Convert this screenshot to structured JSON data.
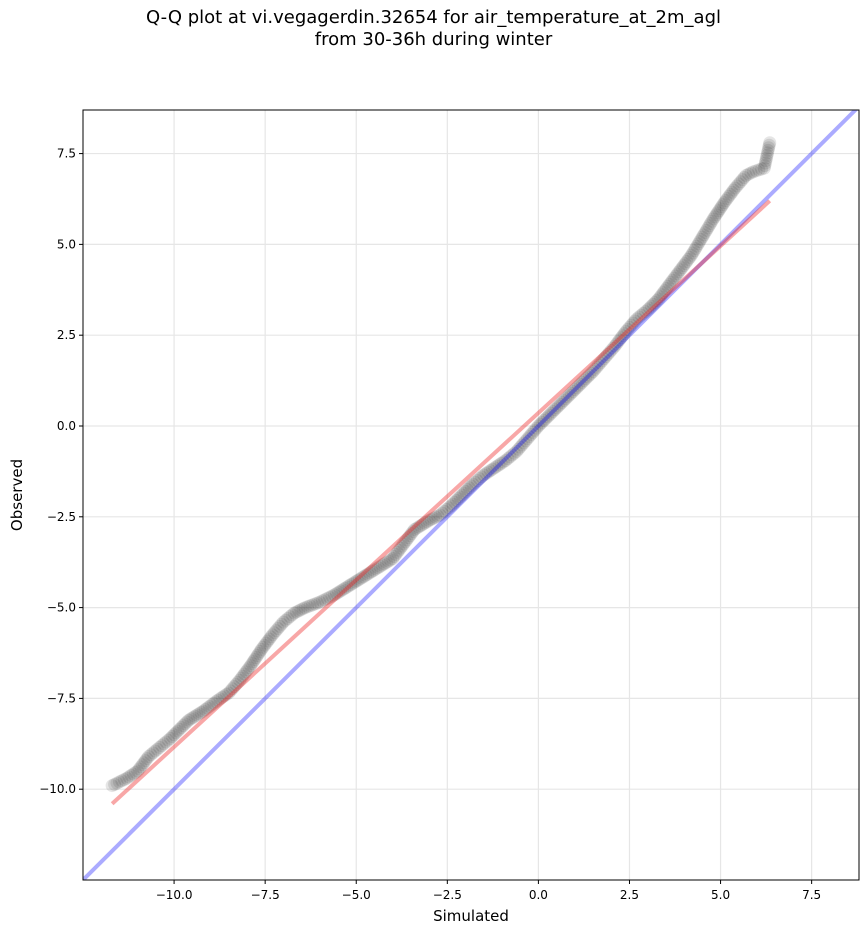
{
  "title": {
    "line1": "Q-Q plot at vi.vegagerdin.32654 for air_temperature_at_2m_agl",
    "line2": "from 30-36h during winter"
  },
  "colors": {
    "points": "#000000",
    "identity_line": "#0000ff",
    "fit_line": "#ee2222",
    "grid": "#e6e6e6"
  },
  "chart_data": {
    "type": "scatter",
    "xlabel": "Simulated",
    "ylabel": "Observed",
    "xlim": [
      -12.5,
      8.8
    ],
    "ylim": [
      -12.5,
      8.7
    ],
    "xticks": [
      -10.0,
      -7.5,
      -5.0,
      -2.5,
      0.0,
      2.5,
      5.0,
      7.5
    ],
    "xtick_labels": [
      "−10.0",
      "−7.5",
      "−5.0",
      "−2.5",
      "0.0",
      "2.5",
      "5.0",
      "7.5"
    ],
    "yticks": [
      -10.0,
      -7.5,
      -5.0,
      -2.5,
      0.0,
      2.5,
      5.0,
      7.5
    ],
    "ytick_labels": [
      "−10.0",
      "−7.5",
      "−5.0",
      "−2.5",
      "0.0",
      "2.5",
      "5.0",
      "7.5"
    ],
    "grid": true,
    "quantile_curve": [
      [
        -11.7,
        -9.9
      ],
      [
        -11.3,
        -9.7
      ],
      [
        -11.0,
        -9.5
      ],
      [
        -10.7,
        -9.1
      ],
      [
        -10.4,
        -8.85
      ],
      [
        -10.1,
        -8.6
      ],
      [
        -9.6,
        -8.1
      ],
      [
        -9.2,
        -7.85
      ],
      [
        -8.8,
        -7.55
      ],
      [
        -8.5,
        -7.35
      ],
      [
        -8.2,
        -7.0
      ],
      [
        -7.9,
        -6.6
      ],
      [
        -7.6,
        -6.15
      ],
      [
        -7.3,
        -5.75
      ],
      [
        -7.0,
        -5.4
      ],
      [
        -6.7,
        -5.15
      ],
      [
        -6.4,
        -5.0
      ],
      [
        -6.0,
        -4.85
      ],
      [
        -5.6,
        -4.65
      ],
      [
        -5.2,
        -4.4
      ],
      [
        -4.8,
        -4.15
      ],
      [
        -4.4,
        -3.9
      ],
      [
        -4.0,
        -3.65
      ],
      [
        -3.7,
        -3.25
      ],
      [
        -3.4,
        -2.85
      ],
      [
        -3.0,
        -2.6
      ],
      [
        -2.7,
        -2.45
      ],
      [
        -2.4,
        -2.2
      ],
      [
        -2.1,
        -1.9
      ],
      [
        -1.8,
        -1.6
      ],
      [
        -1.5,
        -1.35
      ],
      [
        -1.2,
        -1.15
      ],
      [
        -0.9,
        -0.95
      ],
      [
        -0.6,
        -0.7
      ],
      [
        -0.3,
        -0.35
      ],
      [
        0.0,
        0.0
      ],
      [
        0.3,
        0.3
      ],
      [
        0.6,
        0.6
      ],
      [
        0.9,
        0.9
      ],
      [
        1.2,
        1.2
      ],
      [
        1.5,
        1.5
      ],
      [
        1.8,
        1.85
      ],
      [
        2.1,
        2.2
      ],
      [
        2.4,
        2.6
      ],
      [
        2.7,
        2.95
      ],
      [
        3.0,
        3.2
      ],
      [
        3.3,
        3.5
      ],
      [
        3.6,
        3.9
      ],
      [
        3.9,
        4.3
      ],
      [
        4.2,
        4.7
      ],
      [
        4.5,
        5.2
      ],
      [
        4.8,
        5.7
      ],
      [
        5.1,
        6.15
      ],
      [
        5.4,
        6.55
      ],
      [
        5.7,
        6.9
      ],
      [
        5.9,
        7.0
      ],
      [
        6.2,
        7.1
      ],
      [
        6.35,
        7.8
      ]
    ],
    "identity_line": [
      [
        -12.5,
        -12.5
      ],
      [
        8.8,
        8.8
      ]
    ],
    "fit_line": [
      [
        -11.7,
        -10.4
      ],
      [
        6.35,
        6.2
      ]
    ]
  }
}
